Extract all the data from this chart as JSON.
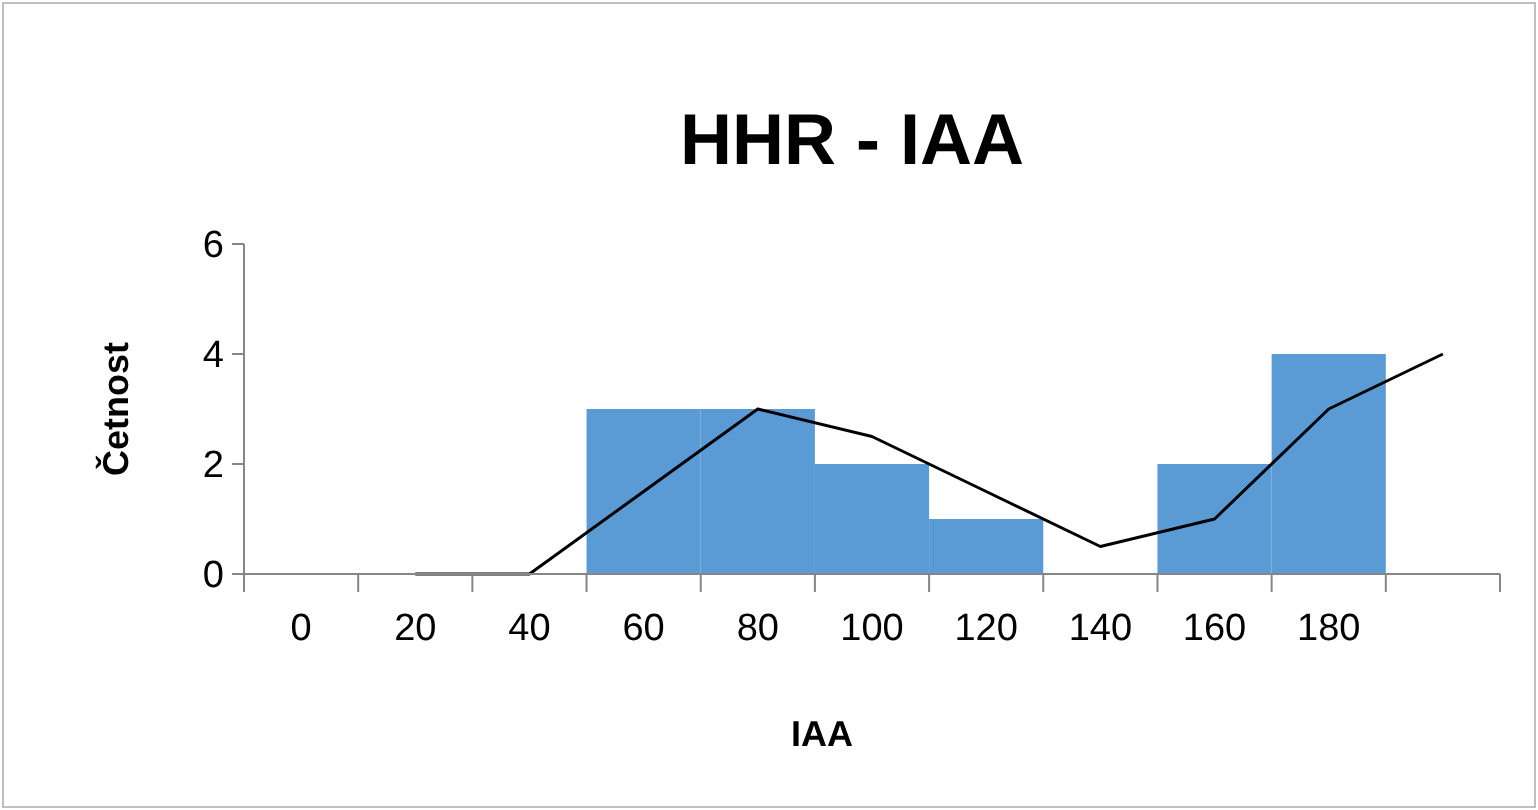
{
  "chart_data": {
    "type": "bar",
    "title": "HHR - IAA",
    "xlabel": "IAA",
    "ylabel": "Četnost",
    "categories": [
      "0",
      "20",
      "40",
      "60",
      "80",
      "100",
      "120",
      "140",
      "160",
      "180",
      null
    ],
    "series": [
      {
        "color": "#5b9bd5",
        "values": [
          0,
          0,
          0,
          3,
          3,
          2,
          1,
          0,
          2,
          4,
          0
        ]
      },
      {
        "type": "line",
        "color": "#000000",
        "values": [
          null,
          0,
          0,
          1.5,
          3,
          2.5,
          1.5,
          0.5,
          1,
          3,
          4
        ]
      }
    ],
    "ylim": [
      0,
      6
    ],
    "yticks": [
      0,
      2,
      4,
      6
    ],
    "grid": false,
    "marker": "none",
    "line_style": "solid"
  }
}
